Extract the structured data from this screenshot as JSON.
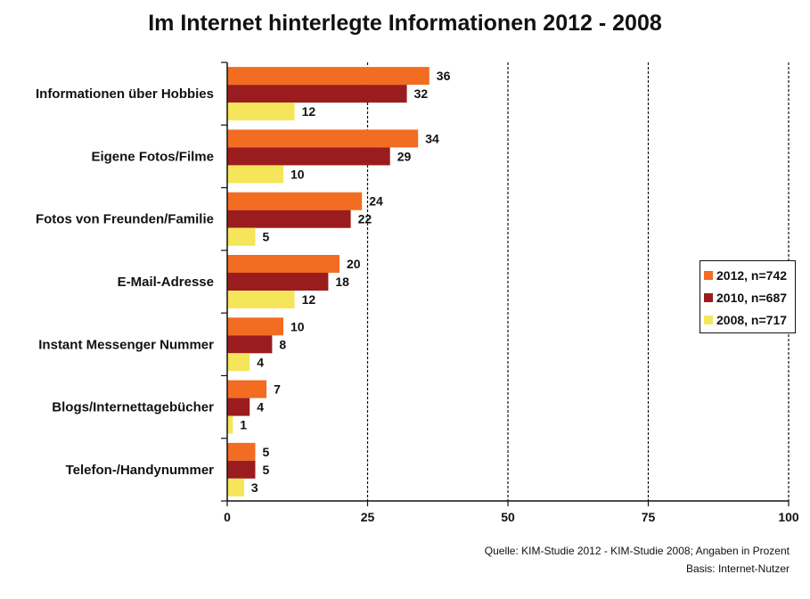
{
  "title": "Im Internet hinterlegte Informationen 2012 - 2008",
  "chart_data": {
    "type": "bar",
    "orientation": "horizontal",
    "title": "Im Internet hinterlegte Informationen 2012 - 2008",
    "categories": [
      "Informationen über Hobbies",
      "Eigene Fotos/Filme",
      "Fotos von Freunden/Familie",
      "E-Mail-Adresse",
      "Instant Messenger Nummer",
      "Blogs/Internettagebücher",
      "Telefon-/Handynummer"
    ],
    "series": [
      {
        "name": "2012, n=742",
        "color": "#f26c22",
        "values": [
          36,
          34,
          24,
          20,
          10,
          7,
          5
        ]
      },
      {
        "name": "2010, n=687",
        "color": "#9b1c1f",
        "values": [
          32,
          29,
          22,
          18,
          8,
          4,
          5
        ]
      },
      {
        "name": "2008, n=717",
        "color": "#f5e55a",
        "values": [
          12,
          10,
          5,
          12,
          4,
          1,
          3
        ]
      }
    ],
    "xlim": [
      0,
      100
    ],
    "xticks": [
      0,
      25,
      50,
      75,
      100
    ],
    "gridlines": "dashed vertical at 25, 50, 75, 100",
    "legend_position": "right"
  },
  "footer": {
    "source": "Quelle: KIM-Studie 2012 - KIM-Studie 2008; Angaben in Prozent",
    "basis": "Basis: Internet-Nutzer"
  }
}
